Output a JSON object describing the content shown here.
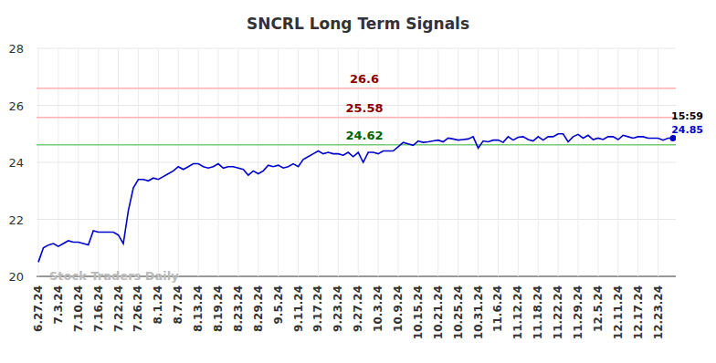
{
  "chart_data": {
    "type": "line",
    "title": "SNCRL Long Term Signals",
    "color": "#0000cc",
    "grid": true,
    "marker": "last",
    "watermark": "Stock Traders Daily",
    "annotations": [
      {
        "text": "15:59"
      }
    ],
    "reference_lines": [
      {
        "value": 26.6,
        "color": "#ffb0b0",
        "label_color": "#8b0000"
      },
      {
        "value": 25.58,
        "color": "#ffb0b0",
        "label_color": "#8b0000"
      },
      {
        "value": 24.62,
        "color": "#77cc77",
        "label_color": "#006400"
      }
    ],
    "ylim": [
      20,
      28
    ],
    "yticks": [
      20,
      22,
      24,
      26,
      28
    ],
    "categories": [
      "6.27.24",
      null,
      null,
      null,
      "7.3.24",
      null,
      null,
      null,
      "7.10.24",
      null,
      null,
      null,
      "7.16.24",
      null,
      null,
      null,
      "7.22.24",
      null,
      null,
      null,
      "7.26.24",
      null,
      null,
      null,
      "8.1.24",
      null,
      null,
      null,
      "8.7.24",
      null,
      null,
      null,
      "8.13.24",
      null,
      null,
      null,
      "8.19.24",
      null,
      null,
      null,
      "8.23.24",
      null,
      null,
      null,
      "8.29.24",
      null,
      null,
      null,
      "9.5.24",
      null,
      null,
      null,
      "9.11.24",
      null,
      null,
      null,
      "9.17.24",
      null,
      null,
      null,
      "9.23.24",
      null,
      null,
      null,
      "9.27.24",
      null,
      null,
      null,
      "10.3.24",
      null,
      null,
      null,
      "10.9.24",
      null,
      null,
      null,
      "10.15.24",
      null,
      null,
      null,
      "10.21.24",
      null,
      null,
      null,
      "10.25.24",
      null,
      null,
      null,
      "10.31.24",
      null,
      null,
      null,
      "11.6.24",
      null,
      null,
      null,
      "11.12.24",
      null,
      null,
      null,
      "11.18.24",
      null,
      null,
      null,
      "11.22.24",
      null,
      null,
      null,
      "11.29.24",
      null,
      null,
      null,
      "12.5.24",
      null,
      null,
      null,
      "12.11.24",
      null,
      null,
      null,
      "12.17.24",
      null,
      null,
      null,
      "12.23.24",
      null,
      null,
      null
    ],
    "values": [
      20.5,
      21.0,
      21.1,
      21.15,
      21.05,
      21.15,
      21.25,
      21.2,
      21.2,
      21.15,
      21.1,
      21.6,
      21.55,
      21.55,
      21.55,
      21.55,
      21.45,
      21.15,
      22.3,
      23.1,
      23.4,
      23.4,
      23.35,
      23.45,
      23.4,
      23.5,
      23.6,
      23.7,
      23.85,
      23.75,
      23.85,
      23.95,
      23.95,
      23.85,
      23.8,
      23.85,
      23.95,
      23.8,
      23.85,
      23.85,
      23.8,
      23.75,
      23.55,
      23.7,
      23.6,
      23.7,
      23.9,
      23.85,
      23.9,
      23.8,
      23.85,
      23.95,
      23.85,
      24.1,
      24.2,
      24.3,
      24.4,
      24.3,
      24.35,
      24.3,
      24.3,
      24.25,
      24.35,
      24.2,
      24.35,
      24.0,
      24.35,
      24.35,
      24.3,
      24.4,
      24.4,
      24.4,
      24.55,
      24.7,
      24.65,
      24.6,
      24.75,
      24.7,
      24.72,
      24.75,
      24.78,
      24.72,
      24.85,
      24.82,
      24.78,
      24.8,
      24.82,
      24.9,
      24.5,
      24.75,
      24.72,
      24.78,
      24.78,
      24.7,
      24.9,
      24.78,
      24.88,
      24.9,
      24.8,
      24.75,
      24.9,
      24.78,
      24.9,
      24.9,
      25.0,
      25.0,
      24.72,
      24.9,
      24.98,
      24.85,
      24.95,
      24.8,
      24.85,
      24.8,
      24.9,
      24.9,
      24.8,
      24.95,
      24.9,
      24.85,
      24.9,
      24.9,
      24.85,
      24.85,
      24.85,
      24.78,
      24.85,
      24.85
    ]
  }
}
